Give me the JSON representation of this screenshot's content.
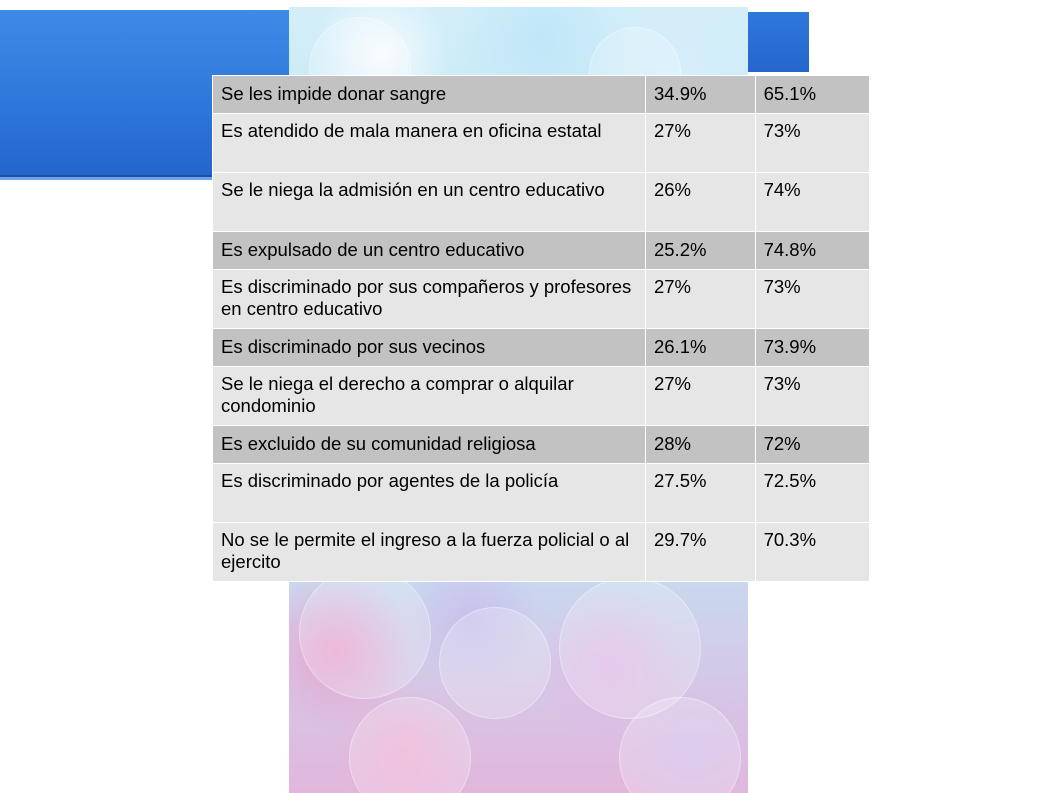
{
  "table": {
    "rows": [
      {
        "label": "Se les impide donar sangre",
        "yes": "34.9%",
        "no": "65.1%"
      },
      {
        "label": "Es atendido de mala manera en oficina estatal",
        "yes": "27%",
        "no": "73%"
      },
      {
        "label": "Se le niega la admisión en un centro educativo",
        "yes": "26%",
        "no": "74%"
      },
      {
        "label": "Es expulsado de un centro educativo",
        "yes": "25.2%",
        "no": "74.8%"
      },
      {
        "label": "Es discriminado por sus compañeros y profesores en centro educativo",
        "yes": "27%",
        "no": "73%"
      },
      {
        "label": "Es discriminado por sus vecinos",
        "yes": "26.1%",
        "no": "73.9%"
      },
      {
        "label": "Se le niega el derecho a comprar o alquilar condominio",
        "yes": "27%",
        "no": "73%"
      },
      {
        "label": "Es excluido de su comunidad religiosa",
        "yes": "28%",
        "no": "72%"
      },
      {
        "label": "Es discriminado por agentes de la policía",
        "yes": "27.5%",
        "no": "72.5%"
      },
      {
        "label": "No se le permite el ingreso a la fuerza policial o al ejercito",
        "yes": "29.7%",
        "no": "70.3%"
      }
    ]
  },
  "colors": {
    "accent_blue": "#2f78db",
    "row_dark": "#c2c2c2",
    "row_light": "#e6e6e6"
  }
}
